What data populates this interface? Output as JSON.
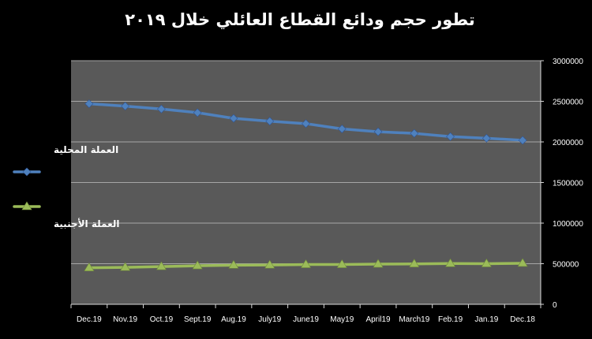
{
  "chart_data": {
    "type": "line",
    "title": "تطور حجم ودائع القطاع العائلي خلال ٢٠١٩",
    "categories": [
      "Dec.19",
      "Nov.19",
      "Oct.19",
      "Sept.19",
      "Aug.19",
      "July19",
      "June19",
      "May19",
      "April19",
      "March19",
      "Feb.19",
      "Jan.19",
      "Dec.18"
    ],
    "series": [
      {
        "name": "العملة المحلية",
        "color": "#4f81bd",
        "marker": "diamond",
        "values": [
          2470000,
          2440000,
          2405000,
          2360000,
          2290000,
          2255000,
          2225000,
          2160000,
          2125000,
          2105000,
          2065000,
          2045000,
          2020000
        ]
      },
      {
        "name": "العملة الأجنبية",
        "color": "#9bbb59",
        "marker": "triangle",
        "values": [
          450000,
          455000,
          465000,
          475000,
          482000,
          484000,
          490000,
          490000,
          495000,
          498000,
          502000,
          500000,
          505000
        ]
      }
    ],
    "ylim": [
      0,
      3000000
    ],
    "yticks": [
      "0",
      "500000",
      "1000000",
      "1500000",
      "2000000",
      "2500000",
      "3000000"
    ],
    "y_axis_side": "right",
    "grid": true,
    "legend_position": "left",
    "plot_background": "#595959",
    "grid_color": "#a6a6a6"
  }
}
